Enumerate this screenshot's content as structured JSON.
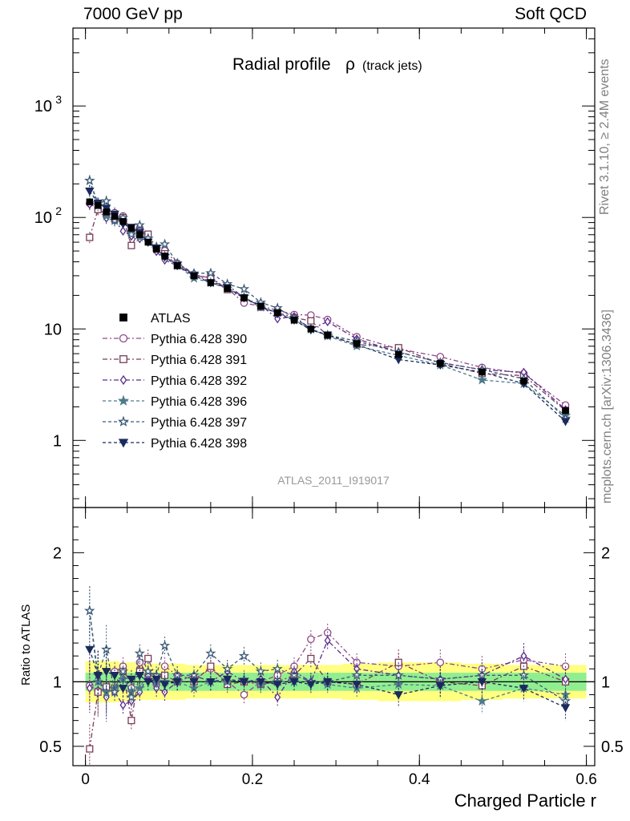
{
  "header": {
    "left": "7000 GeV pp",
    "right": "Soft QCD"
  },
  "side_text": {
    "rivet": "Rivet 3.1.10, ≥ 2.4M events",
    "mcplots": "mcplots.cern.ch [arXiv:1306.3436]"
  },
  "chart_data": {
    "type": "line",
    "title": "Radial profile",
    "title_symbol": "ρ",
    "title_suffix": "(track jets)",
    "analysis_id": "ATLAS_2011_I919017",
    "xlabel": "Charged Particle r",
    "ratio_ylabel": "Ratio to ATLAS",
    "xlim": [
      -0.015,
      0.61
    ],
    "ylim_main": [
      0.25,
      5000
    ],
    "yscale_main": "log",
    "ylim_ratio": [
      0.35,
      2.35
    ],
    "x_ticks": [
      "0",
      "0.2",
      "0.4",
      "0.6"
    ],
    "main_y_ticks": [
      "1",
      "10",
      "10^2",
      "10^3"
    ],
    "ratio_y_ticks": [
      "0.5",
      "1",
      "2"
    ],
    "legend_position": "left-middle",
    "x": [
      0.005,
      0.015,
      0.025,
      0.035,
      0.045,
      0.055,
      0.065,
      0.075,
      0.085,
      0.095,
      0.11,
      0.13,
      0.15,
      0.17,
      0.19,
      0.21,
      0.23,
      0.25,
      0.27,
      0.29,
      0.325,
      0.375,
      0.425,
      0.475,
      0.525,
      0.575
    ],
    "data": {
      "name": "ATLAS",
      "values": [
        138,
        128,
        112,
        102,
        92,
        80,
        70,
        60,
        52,
        45,
        37,
        30,
        26,
        23,
        19,
        16,
        14,
        12,
        10,
        8.8,
        7.4,
        5.9,
        4.9,
        4.1,
        3.4,
        1.85
      ],
      "stat_band": [
        0.93,
        0.93,
        0.93,
        0.93,
        0.93,
        0.93,
        0.93,
        0.93,
        0.93,
        0.93,
        0.93,
        0.93,
        0.93,
        0.93,
        0.93,
        0.93,
        0.93,
        0.93,
        0.93,
        0.93,
        0.93,
        0.93,
        0.93,
        0.93,
        0.93,
        0.93
      ],
      "syst_band": [
        0.84,
        0.84,
        0.84,
        0.84,
        0.85,
        0.85,
        0.86,
        0.86,
        0.86,
        0.86,
        0.86,
        0.87,
        0.87,
        0.87,
        0.87,
        0.87,
        0.87,
        0.87,
        0.87,
        0.87,
        0.86,
        0.85,
        0.85,
        0.86,
        0.87,
        0.87
      ]
    },
    "series": [
      {
        "name": "Pythia 6.428 390",
        "color": "#8e4a86",
        "marker": "circle-open",
        "dash": "6,3,2,3",
        "ratio": [
          0.97,
          0.93,
          0.95,
          1.08,
          1.12,
          0.95,
          1.15,
          1.05,
          0.98,
          1.12,
          1.05,
          1.02,
          1.1,
          1.0,
          0.9,
          1.0,
          1.05,
          1.12,
          1.33,
          1.38,
          1.15,
          1.12,
          1.15,
          1.1,
          1.17,
          1.12
        ]
      },
      {
        "name": "Pythia 6.428 391",
        "color": "#7a3c58",
        "marker": "square-open",
        "dash": "6,3,2,3",
        "ratio": [
          0.48,
          0.92,
          0.96,
          0.95,
          1.08,
          0.7,
          1.08,
          1.18,
          1.02,
          1.05,
          1.0,
          1.0,
          1.12,
          0.98,
          1.0,
          0.98,
          1.0,
          1.05,
          1.18,
          1.0,
          0.98,
          1.15,
          1.0,
          0.97,
          1.12,
          1.0
        ]
      },
      {
        "name": "Pythia 6.428 392",
        "color": "#5a2a8c",
        "marker": "diamond-open",
        "dash": "6,3,2,3",
        "ratio": [
          0.95,
          1.05,
          0.88,
          0.92,
          0.82,
          0.85,
          0.92,
          1.05,
          0.95,
          0.92,
          1.0,
          1.05,
          1.0,
          1.08,
          1.0,
          1.02,
          0.88,
          1.08,
          1.0,
          1.32,
          1.1,
          1.05,
          1.02,
          1.05,
          1.2,
          1.02
        ]
      },
      {
        "name": "Pythia 6.428 396",
        "color": "#4d7a8c",
        "marker": "star-filled",
        "dash": "4,3",
        "ratio": [
          1.55,
          1.0,
          0.92,
          0.95,
          1.02,
          0.92,
          0.95,
          1.08,
          1.0,
          1.0,
          1.0,
          0.95,
          1.0,
          1.0,
          1.02,
          0.98,
          1.0,
          1.0,
          1.0,
          0.98,
          0.95,
          0.98,
          0.97,
          0.85,
          0.95,
          0.9
        ]
      },
      {
        "name": "Pythia 6.428 397",
        "color": "#3d5a78",
        "marker": "star-open",
        "dash": "4,3",
        "ratio": [
          1.55,
          1.05,
          1.25,
          0.92,
          1.08,
          0.88,
          1.22,
          1.08,
          1.05,
          1.28,
          1.05,
          1.05,
          1.22,
          1.1,
          1.2,
          1.08,
          1.1,
          1.05,
          1.0,
          1.0,
          1.05,
          1.05,
          1.02,
          1.05,
          1.05,
          0.85
        ]
      },
      {
        "name": "Pythia 6.428 398",
        "color": "#1a2a5c",
        "marker": "triangle-down-filled",
        "dash": "4,3",
        "ratio": [
          1.25,
          1.05,
          1.08,
          1.05,
          0.95,
          1.02,
          1.05,
          1.0,
          1.02,
          0.98,
          1.0,
          1.0,
          1.0,
          1.02,
          1.0,
          1.0,
          0.98,
          1.0,
          0.98,
          1.0,
          0.98,
          0.9,
          0.97,
          1.0,
          0.95,
          0.8
        ]
      }
    ]
  }
}
